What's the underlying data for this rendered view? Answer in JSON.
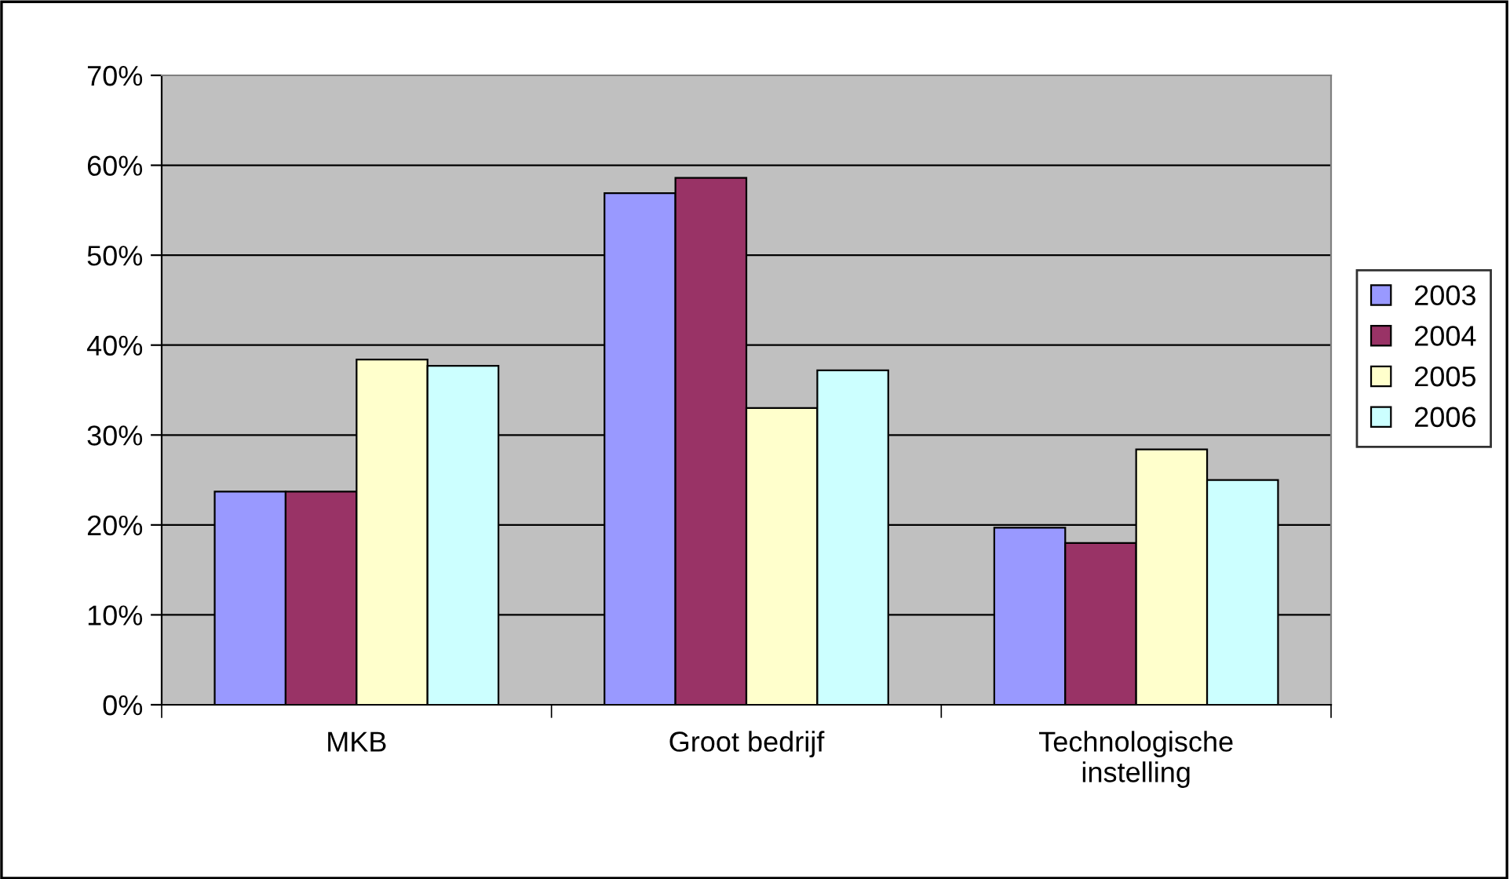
{
  "chart_data": {
    "type": "bar",
    "categories": [
      "MKB",
      "Groot bedrijf",
      "Technologische\ninstelling"
    ],
    "series": [
      {
        "name": "2003",
        "color": "#9999ff",
        "values": [
          23.7,
          56.9,
          19.7
        ]
      },
      {
        "name": "2004",
        "color": "#993366",
        "values": [
          23.7,
          58.6,
          18.0
        ]
      },
      {
        "name": "2005",
        "color": "#ffffcc",
        "values": [
          38.4,
          33.0,
          28.4
        ]
      },
      {
        "name": "2006",
        "color": "#ccffff",
        "values": [
          37.7,
          37.2,
          25.0
        ]
      }
    ],
    "ylim": [
      0,
      70
    ],
    "yticks": [
      {
        "value": 0,
        "label": "0%"
      },
      {
        "value": 10,
        "label": "10%"
      },
      {
        "value": 20,
        "label": "20%"
      },
      {
        "value": 30,
        "label": "30%"
      },
      {
        "value": 40,
        "label": "40%"
      },
      {
        "value": 50,
        "label": "50%"
      },
      {
        "value": 60,
        "label": "60%"
      },
      {
        "value": 70,
        "label": "70%"
      }
    ],
    "grid": "y",
    "legend": "right"
  }
}
